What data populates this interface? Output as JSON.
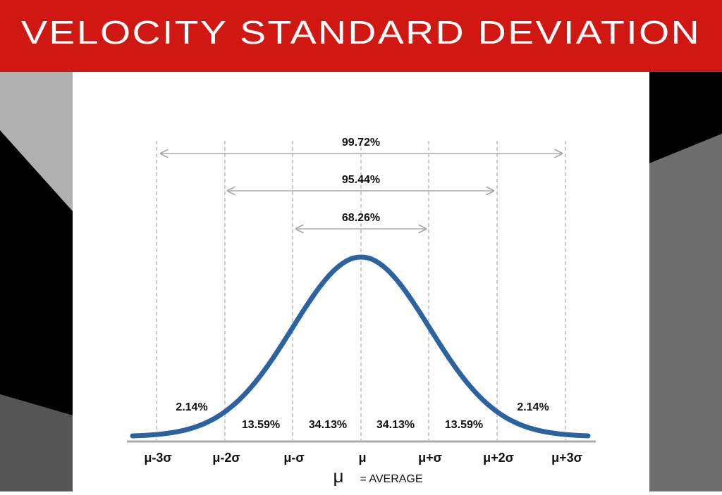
{
  "header": {
    "title": "VELOCITY STANDARD DEVIATION"
  },
  "ranges": [
    "99.72%",
    "95.44%",
    "68.26%"
  ],
  "segments": [
    "2.14%",
    "13.59%",
    "34.13%",
    "34.13%",
    "13.59%",
    "2.14%"
  ],
  "axis_labels": [
    "μ-3σ",
    "μ-2σ",
    "μ-σ",
    "μ",
    "μ+σ",
    "μ+2σ",
    "μ+3σ"
  ],
  "legend": {
    "symbol": "μ",
    "text": "= AVERAGE"
  }
}
